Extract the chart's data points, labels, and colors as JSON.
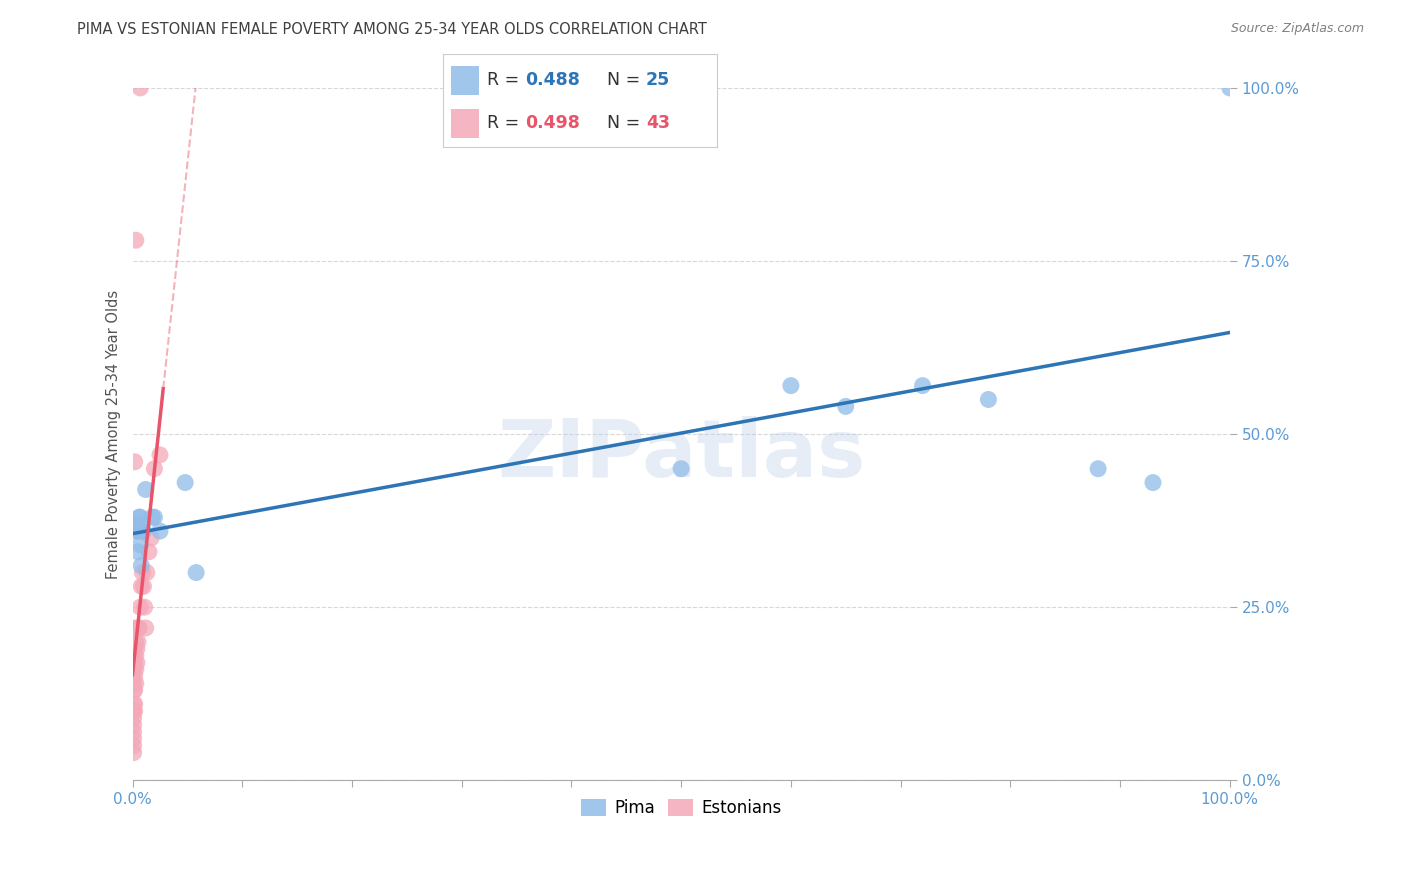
{
  "title": "PIMA VS ESTONIAN FEMALE POVERTY AMONG 25-34 YEAR OLDS CORRELATION CHART",
  "source": "Source: ZipAtlas.com",
  "ylabel": "Female Poverty Among 25-34 Year Olds",
  "legend_pima_r": "0.488",
  "legend_pima_n": "25",
  "legend_estonian_r": "0.498",
  "legend_estonian_n": "43",
  "pima_color": "#91BCE8",
  "estonian_color": "#F4A8B8",
  "pima_line_color": "#2E75B6",
  "estonian_line_color": "#E8546A",
  "watermark_color": "#B8CDE8",
  "watermark": "ZIPatlas",
  "pima_x": [
    0.003,
    0.004,
    0.005,
    0.005,
    0.006,
    0.007,
    0.007,
    0.008,
    0.008,
    0.009,
    0.01,
    0.012,
    0.018,
    0.02,
    0.025,
    0.048,
    0.058,
    0.5,
    0.6,
    0.65,
    0.72,
    0.78,
    0.88,
    0.93,
    1.0
  ],
  "pima_y": [
    0.36,
    0.37,
    0.33,
    0.36,
    0.38,
    0.38,
    0.34,
    0.36,
    0.31,
    0.36,
    0.36,
    0.42,
    0.38,
    0.38,
    0.36,
    0.43,
    0.3,
    0.45,
    0.57,
    0.54,
    0.57,
    0.55,
    0.45,
    0.43,
    1.0
  ],
  "estonian_x": [
    0.001,
    0.001,
    0.001,
    0.001,
    0.001,
    0.001,
    0.001,
    0.001,
    0.001,
    0.001,
    0.001,
    0.001,
    0.001,
    0.002,
    0.002,
    0.002,
    0.002,
    0.002,
    0.002,
    0.003,
    0.003,
    0.003,
    0.003,
    0.003,
    0.004,
    0.004,
    0.005,
    0.005,
    0.006,
    0.007,
    0.008,
    0.009,
    0.01,
    0.011,
    0.012,
    0.013,
    0.015,
    0.017,
    0.02,
    0.025,
    0.002,
    0.003,
    0.007
  ],
  "estonian_y": [
    0.04,
    0.05,
    0.06,
    0.07,
    0.08,
    0.09,
    0.1,
    0.11,
    0.13,
    0.14,
    0.16,
    0.17,
    0.18,
    0.1,
    0.11,
    0.13,
    0.15,
    0.17,
    0.19,
    0.14,
    0.16,
    0.18,
    0.2,
    0.22,
    0.17,
    0.19,
    0.2,
    0.22,
    0.22,
    0.25,
    0.28,
    0.3,
    0.28,
    0.25,
    0.22,
    0.3,
    0.33,
    0.35,
    0.45,
    0.47,
    0.46,
    0.78,
    1.0
  ],
  "xlim": [
    0.0,
    1.0
  ],
  "ylim": [
    0.0,
    1.0
  ],
  "xtick_positions": [
    0.0,
    0.1,
    0.2,
    0.3,
    0.4,
    0.5,
    0.6,
    0.7,
    0.8,
    0.9,
    1.0
  ],
  "ytick_positions": [
    0.0,
    0.25,
    0.5,
    0.75,
    1.0
  ],
  "ytick_labels": [
    "0.0%",
    "25.0%",
    "50.0%",
    "75.0%",
    "100.0%"
  ],
  "xtick_labels_show": [
    "0.0%",
    "",
    "",
    "",
    "",
    "",
    "",
    "",
    "",
    "",
    "100.0%"
  ],
  "grid_color": "#D8D8D8",
  "background_color": "#FFFFFF",
  "axis_label_color": "#5B9BD5",
  "title_color": "#404040",
  "source_color": "#808080"
}
